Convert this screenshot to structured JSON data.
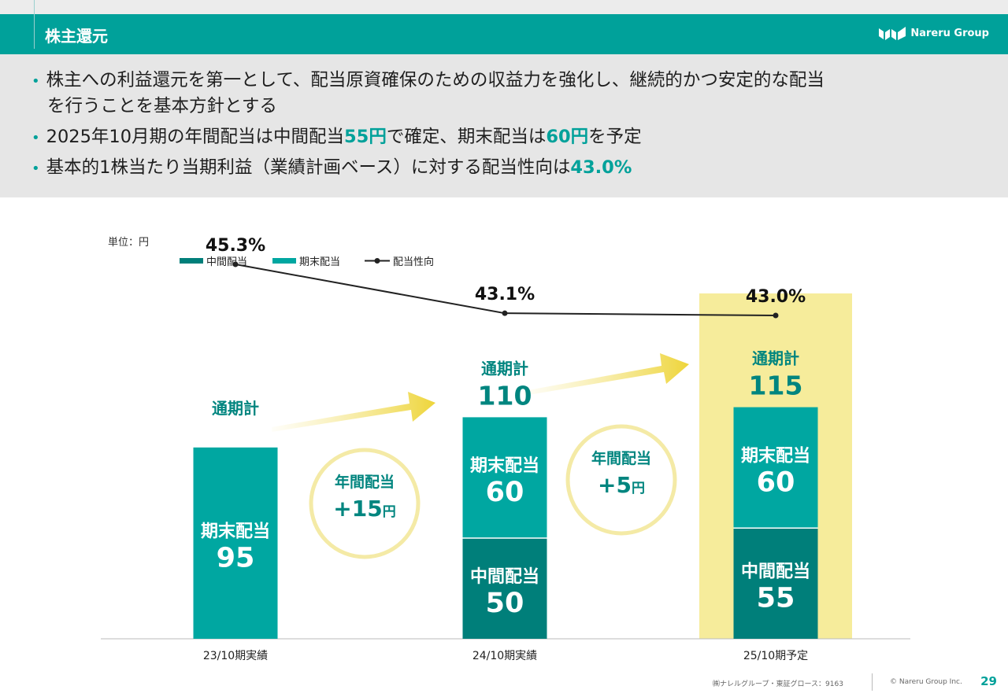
{
  "header": {
    "title": "株主還元",
    "logo_text": "Nareru Group"
  },
  "bullets": [
    {
      "line1": "株主への利益還元を第一として、配当原資確保のための収益力を強化し、継続的かつ安定的な配当",
      "line2": "を行うことを基本方針とする"
    },
    {
      "pre": "2025年10月期の年間配当は中間配当",
      "hl1": "55円",
      "mid": "で確定、期末配当は",
      "hl2": "60円",
      "post": "を予定"
    },
    {
      "pre": "基本的1株当たり当期利益（業績計画ベース）に対する配当性向は",
      "hl": "43.0%"
    }
  ],
  "chart_data": {
    "type": "bar",
    "stacked": true,
    "unit_label": "単位：円",
    "categories": [
      "23/10期実績",
      "24/10期実績",
      "25/10期予定"
    ],
    "series": [
      {
        "name": "中間配当",
        "values": [
          0,
          50,
          55
        ],
        "labels": [
          "",
          "中間配当",
          "中間配当"
        ],
        "color": "#007f7a"
      },
      {
        "name": "期末配当",
        "values": [
          95,
          60,
          60
        ],
        "labels": [
          "期末配当",
          "期末配当",
          "期末配当"
        ],
        "color": "#00a7a1"
      }
    ],
    "line_series": {
      "name": "配当性向",
      "values": [
        45.3,
        43.1,
        43.0
      ],
      "labels": [
        "45.3%",
        "43.1%",
        "43.0%"
      ],
      "color": "#222222"
    },
    "totals": [
      {
        "label": "通期計",
        "value": ""
      },
      {
        "label": "通期計",
        "value": "110"
      },
      {
        "label": "通期計",
        "value": "115"
      }
    ],
    "annotations": [
      {
        "label": "年間配当",
        "value": "+15",
        "unit": "円"
      },
      {
        "label": "年間配当",
        "value": "+5",
        "unit": "円"
      }
    ],
    "highlight_category": "25/10期予定",
    "highlight_color": "#f6ec9b",
    "ylim": [
      0,
      130
    ]
  },
  "footer": {
    "left": "㈱ナレルグループ・東証グロース：9163",
    "copyright": "© Nareru Group Inc.",
    "page": "29"
  }
}
